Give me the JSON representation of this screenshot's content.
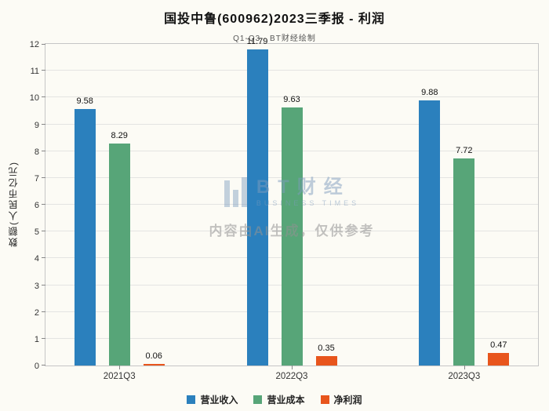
{
  "title": "国投中鲁(600962)2023三季报 - 利润",
  "subtitle": "Q1-Q3 - BT财经绘制",
  "watermark": {
    "brand": "BT财经",
    "brand_sub": "BUSINESS TIMES",
    "disclaimer": "内容由AI生成，仅供参考"
  },
  "chart_data": {
    "type": "bar",
    "title": "国投中鲁(600962)2023三季报 - 利润",
    "subtitle": "Q1-Q3 - BT财经绘制",
    "xlabel": "",
    "ylabel": "数额(人民币亿元)",
    "categories": [
      "2021Q3",
      "2022Q3",
      "2023Q3"
    ],
    "series": [
      {
        "name": "营业收入",
        "color": "#2b80bd",
        "values": [
          9.58,
          11.79,
          9.88
        ]
      },
      {
        "name": "营业成本",
        "color": "#57a578",
        "values": [
          8.29,
          9.63,
          7.72
        ]
      },
      {
        "name": "净利润",
        "color": "#e8551c",
        "values": [
          0.06,
          0.35,
          0.47
        ]
      }
    ],
    "ylim": [
      0,
      12
    ],
    "ytick_step": 1,
    "grid": true,
    "legend_position": "bottom"
  }
}
